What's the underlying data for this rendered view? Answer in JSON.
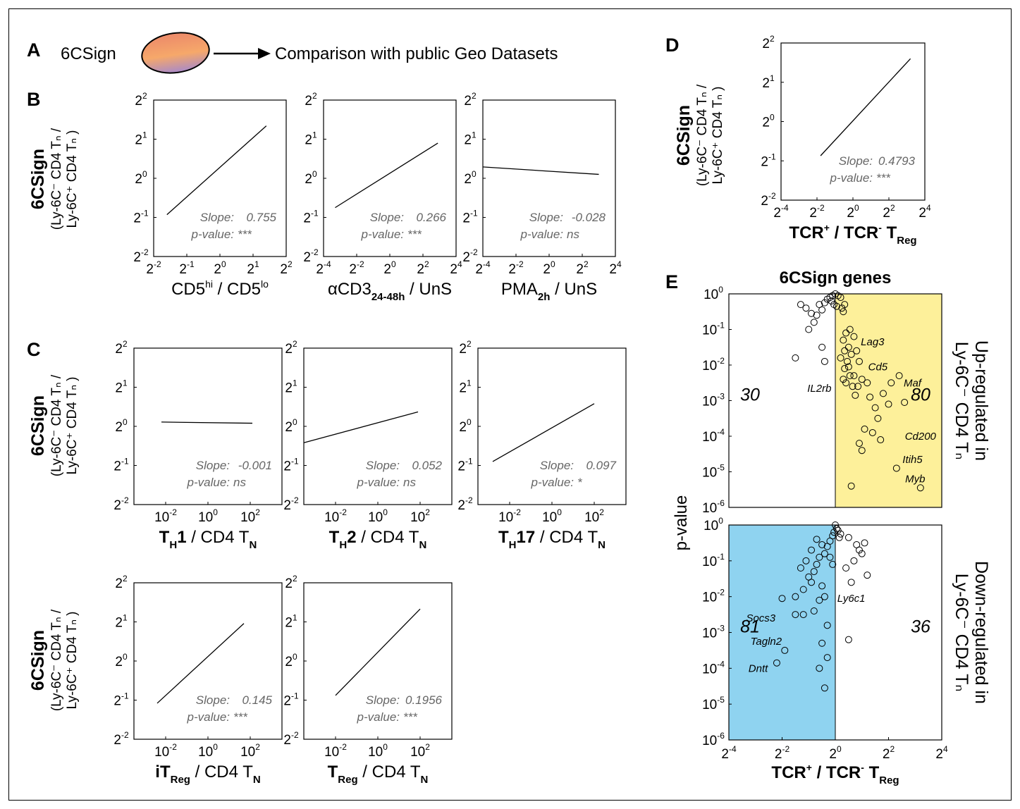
{
  "panels": {
    "A": "A",
    "B": "B",
    "C": "C",
    "D": "D",
    "E": "E"
  },
  "header": {
    "left_text": "6CSign",
    "right_text": "Comparison with public Geo Datasets",
    "left_color": "#f39a20"
  },
  "ylabel": {
    "bold": "6CSign",
    "numerator": "(Ly-6C⁻ CD4 Tₙ /",
    "denominator": "Ly-6C⁺ CD4 Tₙ )"
  },
  "chart_data": [
    {
      "id": "B1",
      "type": "line",
      "xscale": "log2",
      "yscale": "log2",
      "xlim_exp": [
        -2,
        2
      ],
      "ylim_exp": [
        -2,
        2
      ],
      "xticks_exp": [
        -2,
        -1,
        0,
        1,
        2
      ],
      "xbase": 2,
      "yticks_exp": [
        -2,
        -1,
        0,
        1,
        2
      ],
      "x_exp": [
        -1.6,
        1.4
      ],
      "y_exp": [
        -0.93,
        1.34
      ],
      "slope_label": "Slope:",
      "slope": "0.755",
      "p_label": "p-value:",
      "p": "***",
      "xlabel": "CD5hi / CD5lo"
    },
    {
      "id": "B2",
      "type": "line",
      "xscale": "log2",
      "yscale": "log2",
      "xlim_exp": [
        -4,
        4
      ],
      "ylim_exp": [
        -2,
        2
      ],
      "xticks_exp": [
        -4,
        -2,
        0,
        2,
        4
      ],
      "xbase": 2,
      "yticks_exp": [
        -2,
        -1,
        0,
        1,
        2
      ],
      "x_exp": [
        -3.3,
        2.9
      ],
      "y_exp": [
        -0.75,
        0.9
      ],
      "slope_label": "Slope:",
      "slope": "0.266",
      "p_label": "p-value:",
      "p": "***",
      "xlabel": "αCD3 24-48h / UnS"
    },
    {
      "id": "B3",
      "type": "line",
      "xscale": "log2",
      "yscale": "log2",
      "xlim_exp": [
        -4,
        4
      ],
      "ylim_exp": [
        -2,
        2
      ],
      "xticks_exp": [
        -4,
        -2,
        0,
        2,
        4
      ],
      "xbase": 2,
      "yticks_exp": [
        -2,
        -1,
        0,
        1,
        2
      ],
      "x_exp": [
        -4,
        3.0
      ],
      "y_exp": [
        0.29,
        0.1
      ],
      "slope_label": "Slope:",
      "slope": "-0.028",
      "p_label": "p-value:",
      "p": "ns",
      "xlabel": "PMA 2h / UnS"
    },
    {
      "id": "C1",
      "type": "line",
      "xscale": "log10",
      "yscale": "log2",
      "xlim_exp": [
        -3.5,
        3.5
      ],
      "ylim_exp": [
        -2,
        2
      ],
      "xticks_exp": [
        -2,
        0,
        2
      ],
      "xbase": 10,
      "yticks_exp": [
        -2,
        -1,
        0,
        1,
        2
      ],
      "x_exp": [
        -2.2,
        2.1
      ],
      "y_exp": [
        0.11,
        0.08
      ],
      "slope_label": "Slope:",
      "slope": "-0.001",
      "p_label": "p-value:",
      "p": "ns",
      "xlabel": "TH1 / CD4 TN"
    },
    {
      "id": "C2",
      "type": "line",
      "xscale": "log10",
      "yscale": "log2",
      "xlim_exp": [
        -3.5,
        3.5
      ],
      "ylim_exp": [
        -2,
        2
      ],
      "xticks_exp": [
        -2,
        0,
        2
      ],
      "xbase": 10,
      "yticks_exp": [
        -2,
        -1,
        0,
        1,
        2
      ],
      "x_exp": [
        -3.5,
        1.9
      ],
      "y_exp": [
        -0.42,
        0.37
      ],
      "slope_label": "Slope:",
      "slope": "0.052",
      "p_label": "p-value:",
      "p": "ns",
      "xlabel": "TH2 / CD4 TN"
    },
    {
      "id": "C3",
      "type": "line",
      "xscale": "log10",
      "yscale": "log2",
      "xlim_exp": [
        -3.5,
        3.5
      ],
      "ylim_exp": [
        -2,
        2
      ],
      "xticks_exp": [
        -2,
        0,
        2
      ],
      "xbase": 10,
      "yticks_exp": [
        -2,
        -1,
        0,
        1,
        2
      ],
      "x_exp": [
        -2.8,
        2.0
      ],
      "y_exp": [
        -0.9,
        0.58
      ],
      "slope_label": "Slope:",
      "slope": "0.097",
      "p_label": "p-value:",
      "p": "*",
      "xlabel": "TH17 / CD4 TN"
    },
    {
      "id": "C4",
      "type": "line",
      "xscale": "log10",
      "yscale": "log2",
      "xlim_exp": [
        -3.5,
        3.5
      ],
      "ylim_exp": [
        -2,
        2
      ],
      "xticks_exp": [
        -2,
        0,
        2
      ],
      "xbase": 10,
      "yticks_exp": [
        -2,
        -1,
        0,
        1,
        2
      ],
      "x_exp": [
        -2.4,
        1.7
      ],
      "y_exp": [
        -1.08,
        0.96
      ],
      "slope_label": "Slope:",
      "slope": "0.145",
      "p_label": "p-value:",
      "p": "***",
      "xlabel": "iTReg / CD4 TN"
    },
    {
      "id": "C5",
      "type": "line",
      "xscale": "log10",
      "yscale": "log2",
      "xlim_exp": [
        -3.5,
        3.5
      ],
      "ylim_exp": [
        -2,
        2
      ],
      "xticks_exp": [
        -2,
        0,
        2
      ],
      "xbase": 10,
      "yticks_exp": [
        -2,
        -1,
        0,
        1,
        2
      ],
      "x_exp": [
        -2.0,
        2.0
      ],
      "y_exp": [
        -0.88,
        1.33
      ],
      "slope_label": "Slope:",
      "slope": "0.1956",
      "p_label": "p-value:",
      "p": "***",
      "xlabel": "TReg / CD4 TN"
    },
    {
      "id": "D",
      "type": "line",
      "xscale": "log2",
      "yscale": "log2",
      "xlim_exp": [
        -4,
        4
      ],
      "ylim_exp": [
        -2,
        2
      ],
      "xticks_exp": [
        -4,
        -2,
        0,
        2,
        4
      ],
      "xbase": 2,
      "yticks_exp": [
        -2,
        -1,
        0,
        1,
        2
      ],
      "x_exp": [
        -1.8,
        3.2
      ],
      "y_exp": [
        -0.87,
        1.6
      ],
      "slope_label": "Slope:",
      "slope": "0.4793",
      "p_label": "p-value:",
      "p": "***",
      "xlabel": "TCR+ / TCR- TReg"
    },
    {
      "id": "E",
      "type": "scatter",
      "xscale": "log2",
      "yscale": "log10",
      "title": "6CSign genes",
      "ylabel": "p-value",
      "xlabel": "TCR+ / TCR- TReg",
      "xlim_exp": [
        -4,
        4
      ],
      "ylim_exp": [
        -6,
        0
      ],
      "xticks_exp": [
        -4,
        -2,
        0,
        2,
        4
      ],
      "yticks_exp": [
        -6,
        -5,
        -4,
        -3,
        -2,
        -1,
        0
      ],
      "top": {
        "counts": {
          "left": "30",
          "right": "80"
        },
        "side_label_line1": "Up-regulated in",
        "side_label_line2": "Ly-6C⁻ CD4 Tₙ",
        "highlight_color": "#fdf09a",
        "points": [
          [
            -0.6,
            -0.3
          ],
          [
            -0.5,
            -0.45
          ],
          [
            -0.4,
            -0.25
          ],
          [
            -0.3,
            -0.15
          ],
          [
            -0.2,
            -0.1
          ],
          [
            -0.1,
            -0.05
          ],
          [
            0,
            0
          ],
          [
            0.1,
            -0.05
          ],
          [
            0.2,
            -0.1
          ],
          [
            -0.15,
            -0.2
          ],
          [
            -0.05,
            -0.3
          ],
          [
            0.05,
            -0.35
          ],
          [
            0.25,
            -0.4
          ],
          [
            0.3,
            -0.5
          ],
          [
            0.35,
            -0.3
          ],
          [
            -0.7,
            -0.6
          ],
          [
            -0.8,
            -0.8
          ],
          [
            -0.9,
            -0.55
          ],
          [
            -1.1,
            -0.4
          ],
          [
            -1.3,
            -0.3
          ],
          [
            -1.0,
            -1.0
          ],
          [
            -0.5,
            -1.5
          ],
          [
            -0.4,
            -1.9
          ],
          [
            -1.5,
            -1.8
          ],
          [
            0.3,
            -1.3
          ],
          [
            0.4,
            -1.1
          ],
          [
            0.55,
            -1.0
          ],
          [
            0.7,
            -1.2
          ],
          [
            0.5,
            -1.5
          ],
          [
            0.6,
            -1.7
          ],
          [
            0.45,
            -1.9
          ],
          [
            0.35,
            -2.1
          ],
          [
            0.8,
            -1.6
          ],
          [
            0.9,
            -1.9
          ],
          [
            0.55,
            -2.3
          ],
          [
            0.65,
            -2.6
          ],
          [
            0.75,
            -2.85
          ],
          [
            0.85,
            -2.6
          ],
          [
            1.0,
            -2.4
          ],
          [
            1.2,
            -2.5
          ],
          [
            1.3,
            -2.9
          ],
          [
            1.5,
            -3.2
          ],
          [
            1.6,
            -3.5
          ],
          [
            1.8,
            -2.8
          ],
          [
            2.0,
            -3.1
          ],
          [
            2.4,
            -2.3
          ],
          [
            1.1,
            -3.8
          ],
          [
            1.4,
            -3.9
          ],
          [
            0.9,
            -4.2
          ],
          [
            1.0,
            -4.4
          ],
          [
            1.7,
            -4.1
          ],
          [
            2.3,
            -4.9
          ],
          [
            0.6,
            -5.4
          ],
          [
            3.2,
            -5.45
          ],
          [
            0.4,
            -2.5
          ],
          [
            0.3,
            -2.4
          ],
          [
            0.2,
            -1.8
          ],
          [
            0.35,
            -1.6
          ],
          [
            0.5,
            -2.05
          ],
          [
            0.7,
            -2.3
          ],
          [
            2.1,
            -2.5
          ],
          [
            2.6,
            -3.05
          ]
        ],
        "labels": [
          [
            "Lag3",
            1.4,
            -1.35
          ],
          [
            "Cd5",
            1.6,
            -2.05
          ],
          [
            "Maf",
            2.9,
            -2.5
          ],
          [
            "IL2rb",
            -0.6,
            -2.65
          ],
          [
            "Cd200",
            3.2,
            -4.0
          ],
          [
            "Itih5",
            2.9,
            -4.65
          ],
          [
            "Myb",
            3.0,
            -5.2
          ]
        ]
      },
      "bottom": {
        "counts": {
          "left": "81",
          "right": "36"
        },
        "side_label_line1": "Down-regulated in",
        "side_label_line2": "Ly-6C⁻ CD4 Tₙ",
        "highlight_color": "#8fd3f0",
        "points": [
          [
            0,
            0
          ],
          [
            0.05,
            -0.1
          ],
          [
            0.1,
            -0.15
          ],
          [
            -0.05,
            -0.2
          ],
          [
            -0.1,
            -0.3
          ],
          [
            0.15,
            -0.35
          ],
          [
            0.2,
            -0.25
          ],
          [
            -0.2,
            -0.45
          ],
          [
            -0.3,
            -0.6
          ],
          [
            -0.4,
            -0.8
          ],
          [
            -0.5,
            -0.55
          ],
          [
            -0.6,
            -0.9
          ],
          [
            -0.7,
            -1.1
          ],
          [
            -0.8,
            -1.3
          ],
          [
            -0.9,
            -1.6
          ],
          [
            -1.0,
            -1.45
          ],
          [
            -1.2,
            -1.8
          ],
          [
            -1.5,
            -2.0
          ],
          [
            -1.2,
            -2.5
          ],
          [
            -0.8,
            -2.4
          ],
          [
            -0.6,
            -2.1
          ],
          [
            -0.5,
            -1.7
          ],
          [
            -0.4,
            -2.0
          ],
          [
            -0.3,
            -2.8
          ],
          [
            -2.0,
            -2.05
          ],
          [
            -1.5,
            -2.5
          ],
          [
            -1.9,
            -3.5
          ],
          [
            -2.2,
            -3.85
          ],
          [
            -0.5,
            -3.3
          ],
          [
            -0.3,
            -3.7
          ],
          [
            -0.6,
            -4.0
          ],
          [
            -0.4,
            -4.55
          ],
          [
            0.6,
            -1.6
          ],
          [
            0.5,
            -0.35
          ],
          [
            0.8,
            -0.55
          ],
          [
            0.9,
            -0.7
          ],
          [
            1.0,
            -0.8
          ],
          [
            1.1,
            -0.5
          ],
          [
            0.7,
            -1.0
          ],
          [
            0.4,
            -1.2
          ],
          [
            0.5,
            -3.2
          ],
          [
            1.2,
            -1.4
          ],
          [
            -1.1,
            -1.0
          ],
          [
            -1.3,
            -1.2
          ],
          [
            -0.9,
            -0.7
          ],
          [
            -0.7,
            -0.4
          ],
          [
            -0.2,
            -0.9
          ],
          [
            -0.1,
            -1.1
          ]
        ],
        "labels": [
          [
            "Ly6c1",
            0.6,
            -2.05
          ],
          [
            "Socs3",
            -2.8,
            -2.6
          ],
          [
            "Tagln2",
            -2.6,
            -3.25
          ],
          [
            "Dntt",
            -2.9,
            -4.0
          ]
        ]
      }
    }
  ]
}
